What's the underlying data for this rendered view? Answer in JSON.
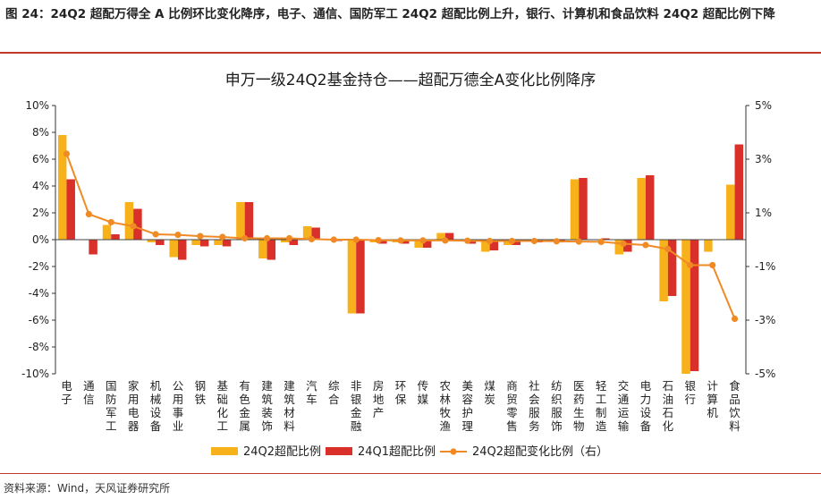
{
  "caption": {
    "text": "图 24：24Q2 超配万得全 A 比例环比变化降序，电子、通信、国防军工 24Q2 超配比例上升，银行、计算机和食品饮料 24Q2 超配比例下降"
  },
  "source": "资料来源：Wind，天风证券研究所",
  "colors": {
    "series_24q2": "#f7b21b",
    "series_24q1": "#d9302a",
    "series_change": "#f08a24",
    "rule": "#c0392b"
  },
  "chart_data": {
    "type": "bar",
    "title": "申万一级24Q2基金持仓——超配万德全A变化比例降序",
    "categories": [
      "电子",
      "通信",
      "国防军工",
      "家用电器",
      "机械设备",
      "公用事业",
      "钢铁",
      "基础化工",
      "有色金属",
      "建筑装饰",
      "建筑材料",
      "汽车",
      "综合",
      "非银金融",
      "房地产",
      "环保",
      "传媒",
      "农林牧渔",
      "美容护理",
      "煤炭",
      "商贸零售",
      "社会服务",
      "纺织服饰",
      "医药生物",
      "轻工制造",
      "交通运输",
      "电力设备",
      "石油石化",
      "银行",
      "计算机",
      "食品饮料"
    ],
    "series": [
      {
        "name": "24Q2超配比例",
        "type": "bar",
        "axis": "left",
        "values": [
          7.8,
          0.0,
          1.1,
          2.8,
          -0.2,
          -1.3,
          -0.4,
          -0.4,
          2.8,
          -1.4,
          -0.2,
          1.0,
          0.0,
          -5.5,
          -0.2,
          -0.2,
          -0.6,
          0.5,
          -0.1,
          -0.9,
          -0.4,
          -0.1,
          -0.1,
          4.5,
          0.0,
          -1.1,
          4.6,
          -4.6,
          -10.0,
          -0.9,
          4.1
        ]
      },
      {
        "name": "24Q1超配比例",
        "type": "bar",
        "axis": "left",
        "values": [
          4.5,
          -1.1,
          0.4,
          2.3,
          -0.4,
          -1.5,
          -0.5,
          -0.5,
          2.8,
          -1.5,
          -0.4,
          0.9,
          -0.1,
          -5.5,
          -0.3,
          -0.3,
          -0.6,
          0.5,
          -0.3,
          -0.8,
          -0.4,
          -0.2,
          -0.2,
          4.6,
          0.1,
          -0.9,
          4.8,
          -4.2,
          -9.8,
          0.0,
          7.1
        ]
      },
      {
        "name": "24Q2超配变化比例（右）",
        "type": "line",
        "axis": "right",
        "values": [
          3.2,
          0.95,
          0.65,
          0.5,
          0.2,
          0.18,
          0.13,
          0.1,
          0.05,
          0.05,
          0.05,
          0.02,
          0.0,
          0.0,
          -0.02,
          -0.03,
          -0.03,
          -0.03,
          -0.04,
          -0.05,
          -0.05,
          -0.05,
          -0.06,
          -0.07,
          -0.08,
          -0.15,
          -0.2,
          -0.35,
          -0.95,
          -0.95,
          -2.95
        ]
      }
    ],
    "ylim_left": [
      -10,
      10
    ],
    "yticks_left": [
      "10%",
      "8%",
      "6%",
      "4%",
      "2%",
      "0%",
      "-2%",
      "-4%",
      "-6%",
      "-8%",
      "-10%"
    ],
    "ylim_right": [
      -5,
      5
    ],
    "yticks_right": [
      "5%",
      "3%",
      "1%",
      "-1%",
      "-3%",
      "-5%"
    ],
    "legend_position": "bottom"
  }
}
